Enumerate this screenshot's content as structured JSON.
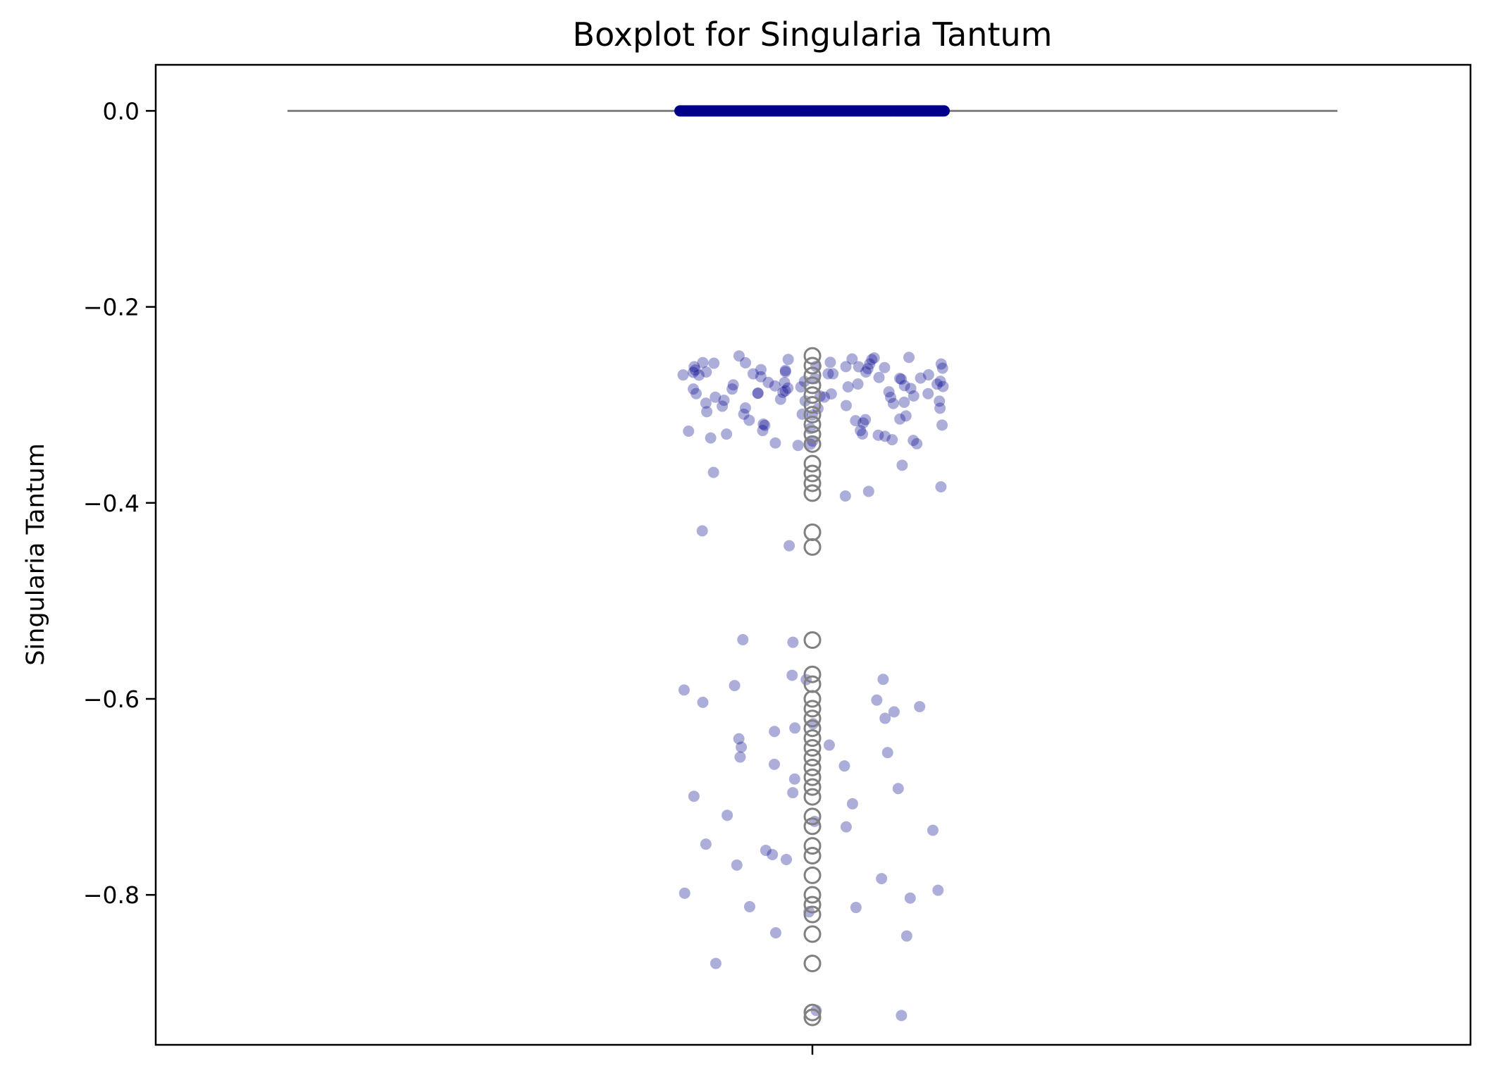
{
  "chart_data": {
    "type": "box",
    "title": "Boxplot for Singularia Tantum",
    "xlabel": "",
    "ylabel": "Singularia Tantum",
    "ylim": [
      -0.953,
      0.047
    ],
    "yticks": [
      0.0,
      -0.2,
      -0.4,
      -0.6,
      -0.8
    ],
    "ytick_labels": [
      "0.0",
      "−0.2",
      "−0.4",
      "−0.6",
      "−0.8"
    ],
    "grid": false,
    "box": {
      "q1": 0.0,
      "median": 0.0,
      "q3": 0.0,
      "whisker_low": 0.0,
      "whisker_high": 0.0,
      "color": "#808080"
    },
    "outliers": [
      -0.25,
      -0.26,
      -0.27,
      -0.28,
      -0.29,
      -0.3,
      -0.31,
      -0.32,
      -0.33,
      -0.34,
      -0.36,
      -0.37,
      -0.38,
      -0.39,
      -0.43,
      -0.445,
      -0.54,
      -0.575,
      -0.585,
      -0.6,
      -0.61,
      -0.62,
      -0.63,
      -0.64,
      -0.65,
      -0.66,
      -0.67,
      -0.68,
      -0.69,
      -0.7,
      -0.72,
      -0.73,
      -0.75,
      -0.76,
      -0.78,
      -0.8,
      -0.81,
      -0.82,
      -0.84,
      -0.87,
      -0.92,
      -0.925
    ],
    "strip_color": "#00008b",
    "strip_values": [
      -0.252,
      -0.255,
      -0.258,
      -0.26,
      -0.262,
      -0.265,
      -0.268,
      -0.27,
      -0.272,
      -0.275,
      -0.278,
      -0.28,
      -0.282,
      -0.285,
      -0.288,
      -0.29,
      -0.293,
      -0.296,
      -0.3,
      -0.305,
      -0.31,
      -0.315,
      -0.32,
      -0.325,
      -0.33,
      -0.335,
      -0.34,
      -0.36,
      -0.37,
      -0.385,
      -0.39,
      -0.392,
      -0.43,
      -0.445,
      -0.54,
      -0.542,
      -0.575,
      -0.58,
      -0.582,
      -0.585,
      -0.59,
      -0.6,
      -0.605,
      -0.61,
      -0.615,
      -0.62,
      -0.625,
      -0.63,
      -0.635,
      -0.64,
      -0.645,
      -0.65,
      -0.655,
      -0.66,
      -0.665,
      -0.67,
      -0.68,
      -0.69,
      -0.695,
      -0.7,
      -0.705,
      -0.72,
      -0.725,
      -0.73,
      -0.735,
      -0.75,
      -0.755,
      -0.76,
      -0.765,
      -0.77,
      -0.785,
      -0.795,
      -0.8,
      -0.805,
      -0.81,
      -0.815,
      -0.818,
      -0.84,
      -0.843,
      -0.87,
      -0.918,
      -0.922
    ],
    "zero_count": 200
  }
}
